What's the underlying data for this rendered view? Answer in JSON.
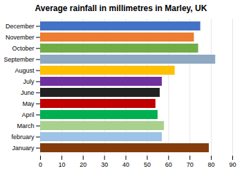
{
  "chart_data": {
    "type": "bar",
    "orientation": "horizontal",
    "title": "Average rainfall in millimetres in Marley, UK",
    "categories": [
      "December",
      "November",
      "October",
      "September",
      "August",
      "July",
      "June",
      "May",
      "April",
      "March",
      "february",
      "January"
    ],
    "values": [
      75,
      72,
      74,
      82,
      63,
      57,
      56,
      54,
      55,
      58,
      57,
      79
    ],
    "colors": [
      "#4472C4",
      "#ED7D31",
      "#70AD47",
      "#8EA9C1",
      "#FFC000",
      "#7030A0",
      "#222222",
      "#C00000",
      "#00B050",
      "#A9D18E",
      "#9DC3E6",
      "#843C0C"
    ],
    "xlim": [
      0,
      90
    ],
    "xticks": [
      0,
      10,
      20,
      30,
      40,
      50,
      60,
      70,
      80,
      90
    ],
    "grid": true
  }
}
